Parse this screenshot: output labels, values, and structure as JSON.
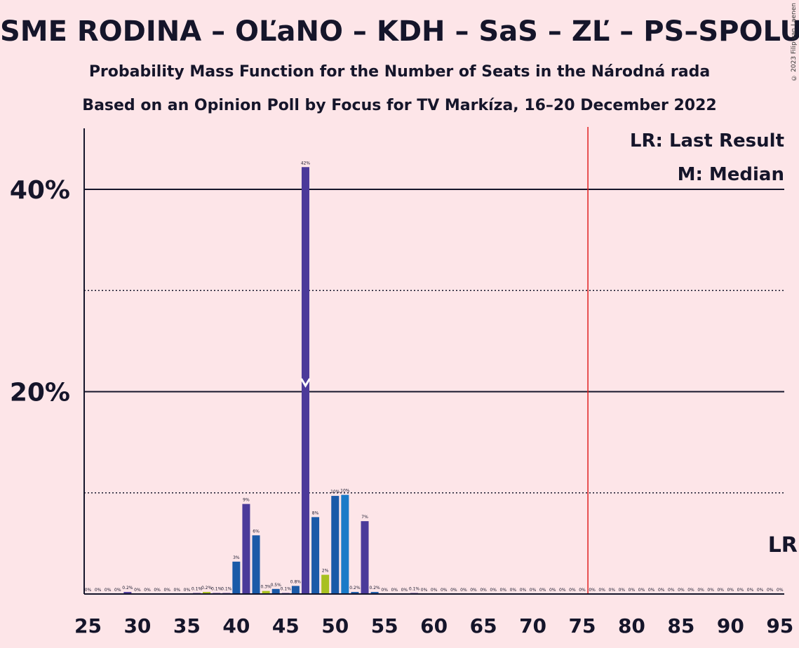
{
  "title": "SME RODINA – OĽaNO – KDH – SaS – ZĽ – PS–SPOLU",
  "subtitle1": "Probability Mass Function for the Number of Seats in the Národná rada",
  "subtitle2": "Based on an Opinion Poll by Focus for TV Markíza, 16–20 December 2022",
  "copyright": "© 2023 Filip van Laenen",
  "legend": {
    "lr": "LR: Last Result",
    "m": "M: Median"
  },
  "lr_marker": "LR",
  "median_marker": "M",
  "chart_data": {
    "type": "bar",
    "xlim": [
      25,
      95
    ],
    "ylim": [
      0,
      46
    ],
    "x_ticks": [
      25,
      30,
      35,
      40,
      45,
      50,
      55,
      60,
      65,
      70,
      75,
      80,
      85,
      90,
      95
    ],
    "y_ticks": [
      {
        "value": 20,
        "label": "20%"
      },
      {
        "value": 40,
        "label": "40%"
      }
    ],
    "minor_gridlines": [
      10,
      30
    ],
    "majority_line": 76,
    "median": 47,
    "last_result": 95,
    "colors": {
      "purple": "#4b3a9a",
      "blue": "#1a5aa8",
      "olive": "#a8c020",
      "cyan": "#1a7ac8",
      "red": "#e02020"
    },
    "bars": [
      {
        "x": 25,
        "value": 0,
        "label": "0%",
        "color": "purple"
      },
      {
        "x": 26,
        "value": 0,
        "label": "0%",
        "color": "purple"
      },
      {
        "x": 27,
        "value": 0,
        "label": "0%",
        "color": "purple"
      },
      {
        "x": 28,
        "value": 0,
        "label": "0%",
        "color": "purple"
      },
      {
        "x": 29,
        "value": 0.2,
        "label": "0.2%",
        "color": "purple"
      },
      {
        "x": 30,
        "value": 0,
        "label": "0%",
        "color": "purple"
      },
      {
        "x": 31,
        "value": 0,
        "label": "0%",
        "color": "purple"
      },
      {
        "x": 32,
        "value": 0,
        "label": "0%",
        "color": "purple"
      },
      {
        "x": 33,
        "value": 0,
        "label": "0%",
        "color": "purple"
      },
      {
        "x": 34,
        "value": 0,
        "label": "0%",
        "color": "purple"
      },
      {
        "x": 35,
        "value": 0,
        "label": "0%",
        "color": "purple"
      },
      {
        "x": 36,
        "value": 0.1,
        "label": "0.1%",
        "color": "purple"
      },
      {
        "x": 37,
        "value": 0.2,
        "label": "0.2%",
        "color": "olive"
      },
      {
        "x": 38,
        "value": 0.1,
        "label": "0.1%",
        "color": "purple"
      },
      {
        "x": 39,
        "value": 0.1,
        "label": "0.1%",
        "color": "purple"
      },
      {
        "x": 40,
        "value": 3.2,
        "label": "3%",
        "color": "blue"
      },
      {
        "x": 41,
        "value": 8.9,
        "label": "9%",
        "color": "purple"
      },
      {
        "x": 42,
        "value": 5.8,
        "label": "6%",
        "color": "blue"
      },
      {
        "x": 43,
        "value": 0.3,
        "label": "0.3%",
        "color": "olive"
      },
      {
        "x": 44,
        "value": 0.5,
        "label": "0.5%",
        "color": "blue"
      },
      {
        "x": 45,
        "value": 0.1,
        "label": "0.1%",
        "color": "purple"
      },
      {
        "x": 46,
        "value": 0.8,
        "label": "0.8%",
        "color": "blue"
      },
      {
        "x": 47,
        "value": 42.2,
        "label": "42%",
        "color": "purple"
      },
      {
        "x": 48,
        "value": 7.6,
        "label": "8%",
        "color": "blue"
      },
      {
        "x": 49,
        "value": 1.9,
        "label": "2%",
        "color": "olive"
      },
      {
        "x": 50,
        "value": 9.7,
        "label": "10%",
        "color": "blue"
      },
      {
        "x": 51,
        "value": 9.8,
        "label": "10%",
        "color": "cyan"
      },
      {
        "x": 52,
        "value": 0.2,
        "label": "0.2%",
        "color": "blue"
      },
      {
        "x": 53,
        "value": 7.2,
        "label": "7%",
        "color": "purple"
      },
      {
        "x": 54,
        "value": 0.2,
        "label": "0.2%",
        "color": "blue"
      },
      {
        "x": 55,
        "value": 0,
        "label": "0%",
        "color": "purple"
      },
      {
        "x": 56,
        "value": 0,
        "label": "0%",
        "color": "purple"
      },
      {
        "x": 57,
        "value": 0,
        "label": "0%",
        "color": "purple"
      },
      {
        "x": 58,
        "value": 0.1,
        "label": "0.1%",
        "color": "purple"
      },
      {
        "x": 59,
        "value": 0,
        "label": "0%",
        "color": "purple"
      },
      {
        "x": 60,
        "value": 0,
        "label": "0%",
        "color": "purple"
      },
      {
        "x": 61,
        "value": 0,
        "label": "0%",
        "color": "purple"
      },
      {
        "x": 62,
        "value": 0,
        "label": "0%",
        "color": "purple"
      },
      {
        "x": 63,
        "value": 0,
        "label": "0%",
        "color": "purple"
      },
      {
        "x": 64,
        "value": 0,
        "label": "0%",
        "color": "purple"
      },
      {
        "x": 65,
        "value": 0,
        "label": "0%",
        "color": "purple"
      },
      {
        "x": 66,
        "value": 0,
        "label": "0%",
        "color": "purple"
      },
      {
        "x": 67,
        "value": 0,
        "label": "0%",
        "color": "purple"
      },
      {
        "x": 68,
        "value": 0,
        "label": "0%",
        "color": "purple"
      },
      {
        "x": 69,
        "value": 0,
        "label": "0%",
        "color": "purple"
      },
      {
        "x": 70,
        "value": 0,
        "label": "0%",
        "color": "purple"
      },
      {
        "x": 71,
        "value": 0,
        "label": "0%",
        "color": "purple"
      },
      {
        "x": 72,
        "value": 0,
        "label": "0%",
        "color": "purple"
      },
      {
        "x": 73,
        "value": 0,
        "label": "0%",
        "color": "purple"
      },
      {
        "x": 74,
        "value": 0,
        "label": "0%",
        "color": "purple"
      },
      {
        "x": 75,
        "value": 0,
        "label": "0%",
        "color": "purple"
      },
      {
        "x": 76,
        "value": 0,
        "label": "0%",
        "color": "purple"
      },
      {
        "x": 77,
        "value": 0,
        "label": "0%",
        "color": "purple"
      },
      {
        "x": 78,
        "value": 0,
        "label": "0%",
        "color": "purple"
      },
      {
        "x": 79,
        "value": 0,
        "label": "0%",
        "color": "purple"
      },
      {
        "x": 80,
        "value": 0,
        "label": "0%",
        "color": "purple"
      },
      {
        "x": 81,
        "value": 0,
        "label": "0%",
        "color": "purple"
      },
      {
        "x": 82,
        "value": 0,
        "label": "0%",
        "color": "purple"
      },
      {
        "x": 83,
        "value": 0,
        "label": "0%",
        "color": "purple"
      },
      {
        "x": 84,
        "value": 0,
        "label": "0%",
        "color": "purple"
      },
      {
        "x": 85,
        "value": 0,
        "label": "0%",
        "color": "purple"
      },
      {
        "x": 86,
        "value": 0,
        "label": "0%",
        "color": "purple"
      },
      {
        "x": 87,
        "value": 0,
        "label": "0%",
        "color": "purple"
      },
      {
        "x": 88,
        "value": 0,
        "label": "0%",
        "color": "purple"
      },
      {
        "x": 89,
        "value": 0,
        "label": "0%",
        "color": "purple"
      },
      {
        "x": 90,
        "value": 0,
        "label": "0%",
        "color": "purple"
      },
      {
        "x": 91,
        "value": 0,
        "label": "0%",
        "color": "purple"
      },
      {
        "x": 92,
        "value": 0,
        "label": "0%",
        "color": "purple"
      },
      {
        "x": 93,
        "value": 0,
        "label": "0%",
        "color": "purple"
      },
      {
        "x": 94,
        "value": 0,
        "label": "0%",
        "color": "purple"
      },
      {
        "x": 95,
        "value": 0,
        "label": "0%",
        "color": "purple"
      }
    ]
  }
}
